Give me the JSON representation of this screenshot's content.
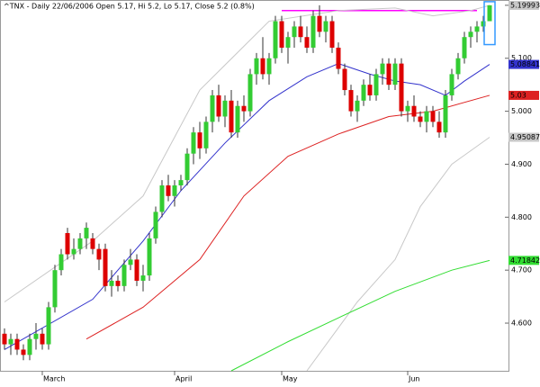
{
  "chart_data": {
    "type": "candlestick",
    "title": "^TNX - Daily 22/06/2006 Open 5.17, Hi 5.2, Lo 5.17, Close 5.2 (0.8%)",
    "categories": [
      null,
      null,
      null,
      null,
      null,
      null,
      "March",
      null,
      null,
      null,
      null,
      null,
      null,
      null,
      null,
      null,
      null,
      null,
      null,
      null,
      null,
      null,
      null,
      null,
      null,
      null,
      null,
      "April",
      null,
      null,
      null,
      null,
      null,
      null,
      null,
      null,
      null,
      null,
      null,
      null,
      null,
      null,
      null,
      null,
      "May",
      null,
      null,
      null,
      null,
      null,
      null,
      null,
      null,
      null,
      null,
      null,
      null,
      null,
      null,
      null,
      null,
      null,
      null,
      null,
      "Jun",
      null,
      null,
      null,
      null,
      null,
      null,
      null,
      null,
      null,
      null,
      null,
      null,
      null
    ],
    "open": [
      4.58,
      4.56,
      4.57,
      4.55,
      4.54,
      4.57,
      4.58,
      4.56,
      4.63,
      4.7,
      4.77,
      4.73,
      4.74,
      4.76,
      4.76,
      4.74,
      4.74,
      4.67,
      4.68,
      4.67,
      4.71,
      4.72,
      4.68,
      4.69,
      4.76,
      4.81,
      4.86,
      4.84,
      4.86,
      4.87,
      4.92,
      4.96,
      4.93,
      4.98,
      5.03,
      4.99,
      5.02,
      4.96,
      5.01,
      5.0,
      5.07,
      5.1,
      5.07,
      5.1,
      5.17,
      5.12,
      5.14,
      5.16,
      5.14,
      5.12,
      5.18,
      5.15,
      5.17,
      5.12,
      5.08,
      5.04,
      5.0,
      5.02,
      5.05,
      5.03,
      5.07,
      5.09,
      5.05,
      5.09,
      5.0,
      5.01,
      4.99,
      4.98,
      5.0,
      4.98,
      4.96,
      5.03,
      5.07,
      5.1,
      5.14,
      5.15,
      5.16,
      5.17
    ],
    "high": [
      4.59,
      4.58,
      4.58,
      4.56,
      4.58,
      4.6,
      4.59,
      4.64,
      4.71,
      4.74,
      4.78,
      4.76,
      4.77,
      4.79,
      4.77,
      4.75,
      4.75,
      4.7,
      4.69,
      4.72,
      4.74,
      4.73,
      4.71,
      4.77,
      4.82,
      4.87,
      4.88,
      4.87,
      4.88,
      4.93,
      4.97,
      4.98,
      4.99,
      5.04,
      5.05,
      5.03,
      5.04,
      5.02,
      5.03,
      5.08,
      5.11,
      5.14,
      5.11,
      5.18,
      5.18,
      5.15,
      5.17,
      5.18,
      5.16,
      5.19,
      5.2,
      5.18,
      5.18,
      5.13,
      5.09,
      5.05,
      5.03,
      5.06,
      5.07,
      5.08,
      5.1,
      5.1,
      5.1,
      5.1,
      5.02,
      5.03,
      5.0,
      5.01,
      5.01,
      5.0,
      5.04,
      5.08,
      5.11,
      5.15,
      5.16,
      5.17,
      5.18,
      5.2
    ],
    "low": [
      4.55,
      4.54,
      4.54,
      4.53,
      4.53,
      4.55,
      4.55,
      4.55,
      4.62,
      4.69,
      4.72,
      4.72,
      4.73,
      4.74,
      4.73,
      4.7,
      4.66,
      4.65,
      4.66,
      4.66,
      4.7,
      4.67,
      4.66,
      4.68,
      4.75,
      4.8,
      4.83,
      4.82,
      4.85,
      4.86,
      4.9,
      4.91,
      4.92,
      4.96,
      4.98,
      4.97,
      4.95,
      4.95,
      4.98,
      4.99,
      5.05,
      5.06,
      5.05,
      5.09,
      5.11,
      5.09,
      5.12,
      5.13,
      5.11,
      5.11,
      5.14,
      5.13,
      5.11,
      5.07,
      5.03,
      4.99,
      4.98,
      5.01,
      5.02,
      5.02,
      5.05,
      5.04,
      5.04,
      4.99,
      4.98,
      4.98,
      4.97,
      4.96,
      4.97,
      4.95,
      4.95,
      5.02,
      5.06,
      5.09,
      5.12,
      5.13,
      5.15,
      5.17
    ],
    "close": [
      4.56,
      4.57,
      4.55,
      4.54,
      4.57,
      4.58,
      4.56,
      4.63,
      4.7,
      4.73,
      4.73,
      4.74,
      4.76,
      4.78,
      4.74,
      4.72,
      4.67,
      4.68,
      4.67,
      4.71,
      4.72,
      4.68,
      4.69,
      4.76,
      4.81,
      4.86,
      4.84,
      4.86,
      4.87,
      4.92,
      4.96,
      4.93,
      4.98,
      5.03,
      4.99,
      5.02,
      4.96,
      5.01,
      5.0,
      5.07,
      5.1,
      5.07,
      5.1,
      5.17,
      5.12,
      5.14,
      5.16,
      5.14,
      5.12,
      5.18,
      5.15,
      5.17,
      5.12,
      5.08,
      5.04,
      5.0,
      5.02,
      5.05,
      5.03,
      5.07,
      5.09,
      5.05,
      5.09,
      5.0,
      5.01,
      4.99,
      4.98,
      5.0,
      4.98,
      4.96,
      5.03,
      5.07,
      5.1,
      5.14,
      5.15,
      5.16,
      5.17,
      5.2
    ],
    "up_color": "#33cc33",
    "down_color": "#dd0000",
    "lines": [
      {
        "color": "#c8c8c8",
        "x": [
          0,
          14,
          22,
          31,
          42,
          53,
          62,
          68,
          74,
          77
        ],
        "values": [
          4.64,
          4.755,
          4.84,
          5.04,
          5.17,
          5.19,
          5.195,
          5.18,
          5.19,
          5.19993
        ]
      },
      {
        "color": "#3333cc",
        "x": [
          0,
          14,
          22,
          28,
          35,
          42,
          48,
          53,
          58,
          62,
          66,
          70,
          73,
          77
        ],
        "values": [
          4.55,
          4.645,
          4.755,
          4.85,
          4.94,
          5.02,
          5.065,
          5.09,
          5.07,
          5.057,
          5.05,
          5.03,
          5.057,
          5.08841
        ]
      },
      {
        "color": "#dd2222",
        "x": [
          13,
          22,
          31,
          38,
          45,
          53,
          61,
          68,
          77
        ],
        "values": [
          4.57,
          4.63,
          4.72,
          4.84,
          4.915,
          4.957,
          4.99,
          5.0,
          5.03
        ]
      },
      {
        "color": "#c8c8c8",
        "x": [
          48,
          56,
          62,
          66,
          71,
          77
        ],
        "values": [
          4.51,
          4.64,
          4.72,
          4.82,
          4.9,
          4.95087
        ]
      },
      {
        "color": "#33dd33",
        "x": [
          36,
          45,
          53,
          62,
          71,
          77
        ],
        "values": [
          4.51,
          4.565,
          4.61,
          4.66,
          4.7,
          4.71842
        ]
      }
    ],
    "resistance": {
      "value": 5.19,
      "color": "#ff00ff",
      "x": [
        44,
        75
      ]
    },
    "ylim": [
      4.51,
      5.21
    ],
    "yticks": [
      {
        "value": 4.6,
        "label": "4.600"
      },
      {
        "value": 4.7,
        "label": "4.700"
      },
      {
        "value": 4.8,
        "label": "4.800"
      },
      {
        "value": 4.9,
        "label": "4.900"
      },
      {
        "value": 5.0,
        "label": "5.000"
      },
      {
        "value": 5.1,
        "label": "5.100"
      },
      5.2
    ]
  }
}
